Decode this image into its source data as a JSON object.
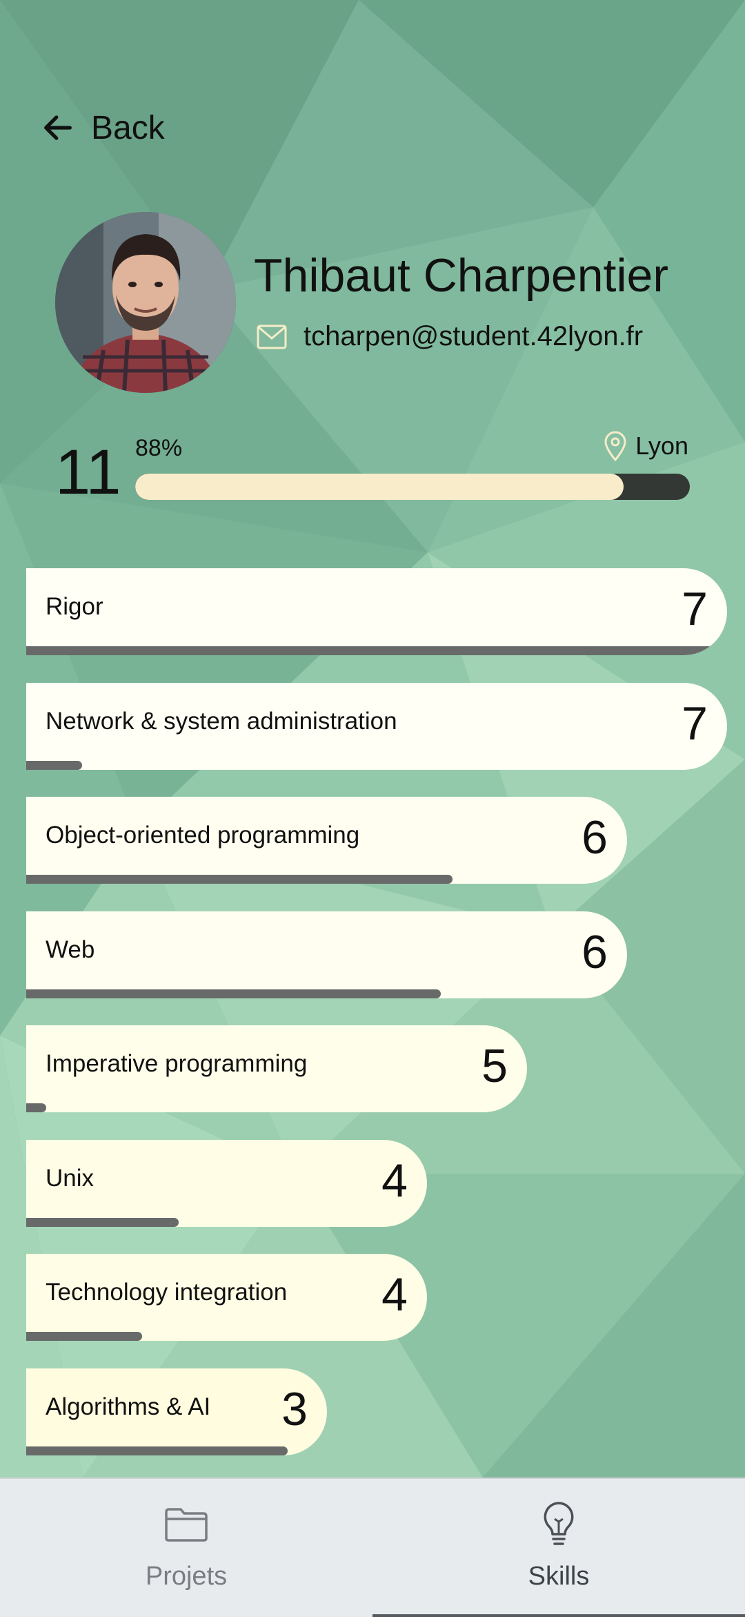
{
  "header": {
    "back_label": "Back"
  },
  "profile": {
    "name": "Thibaut Charpentier",
    "email": "tcharpen@student.42lyon.fr",
    "level": "11",
    "progress_label": "88%",
    "progress_fraction": 0.88,
    "location": "Lyon"
  },
  "skills": [
    {
      "name": "Rigor",
      "level": "7",
      "progress_fraction": 0.99
    },
    {
      "name": "Network & system administration",
      "level": "7",
      "progress_fraction": 0.08
    },
    {
      "name": "Object-oriented programming",
      "level": "6",
      "progress_fraction": 0.71
    },
    {
      "name": "Web",
      "level": "6",
      "progress_fraction": 0.69
    },
    {
      "name": "Imperative programming",
      "level": "5",
      "progress_fraction": 0.04
    },
    {
      "name": "Unix",
      "level": "4",
      "progress_fraction": 0.38
    },
    {
      "name": "Technology integration",
      "level": "4",
      "progress_fraction": 0.29
    },
    {
      "name": "Algorithms & AI",
      "level": "3",
      "progress_fraction": 0.87
    }
  ],
  "nav": {
    "tabs": [
      {
        "label": "Projets",
        "icon": "folder-icon",
        "active": false
      },
      {
        "label": "Skills",
        "icon": "lightbulb-icon",
        "active": true
      }
    ]
  },
  "colors": {
    "background": "#7fb59a",
    "card": "#fffff2",
    "xp_fill": "#f8ecca",
    "xp_track": "#333835",
    "skill_progress": "#676a69",
    "nav_bg": "#e8ebee"
  }
}
